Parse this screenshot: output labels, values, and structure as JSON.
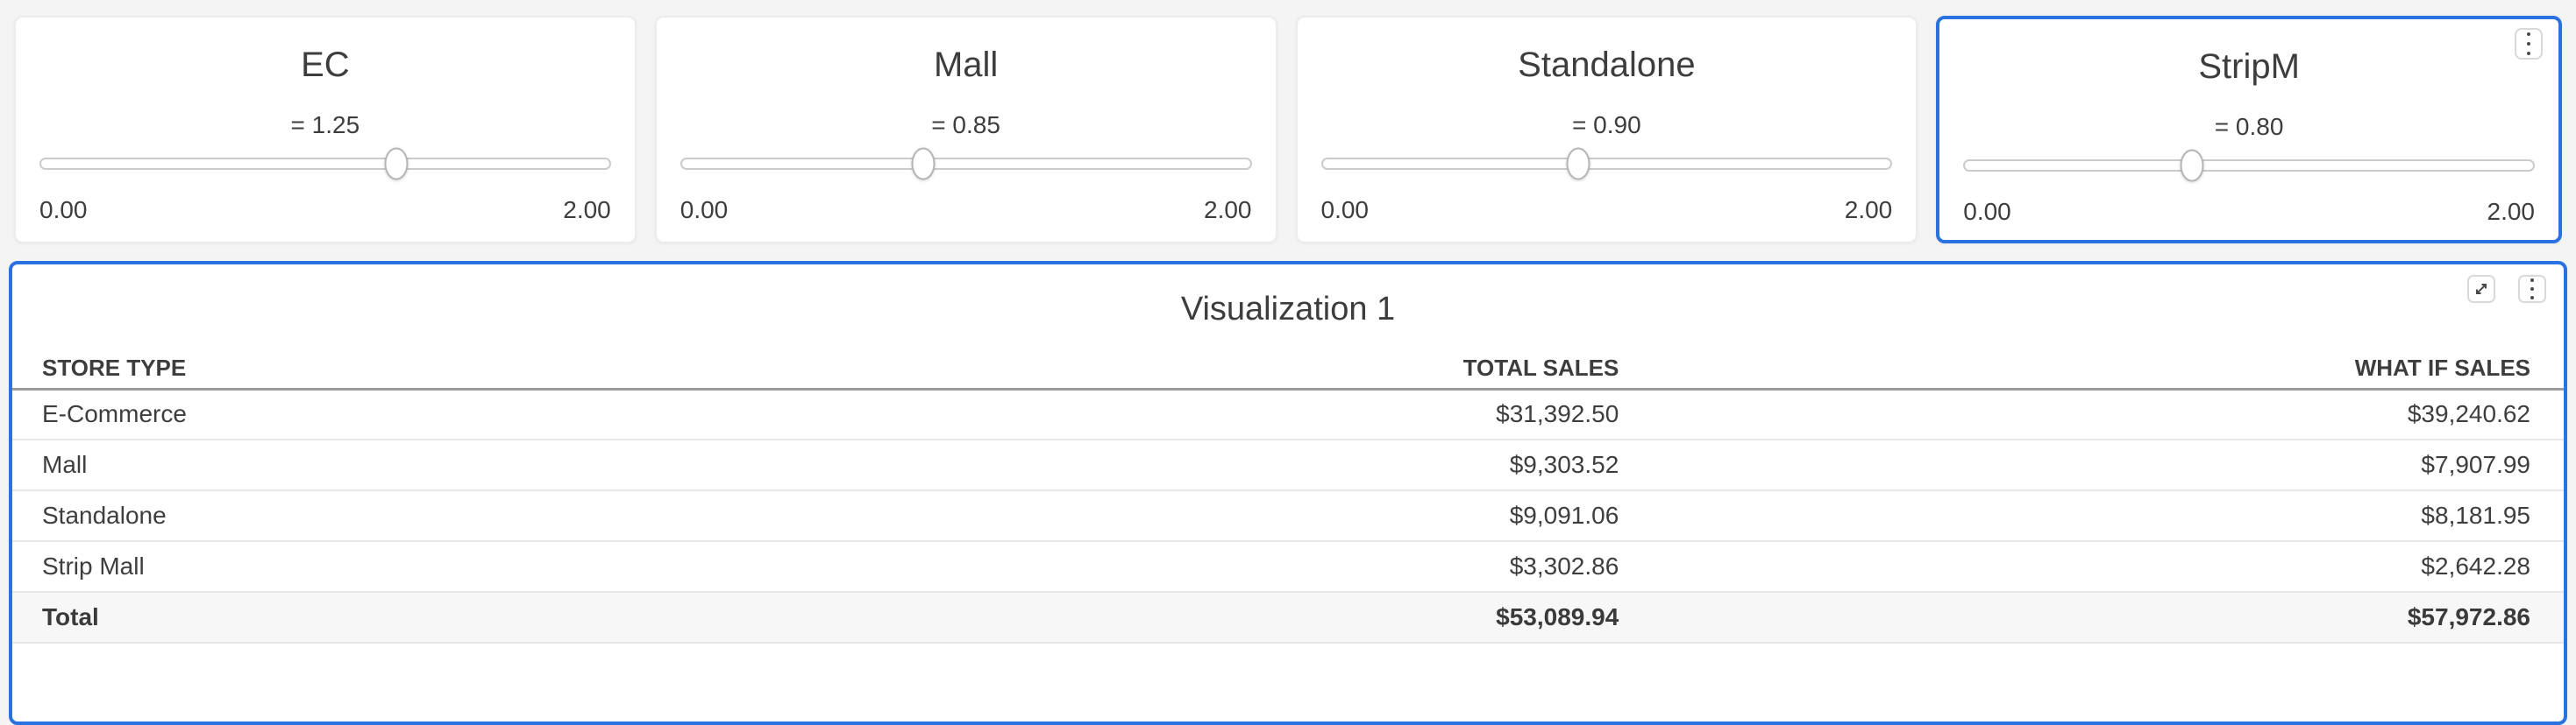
{
  "page": {
    "accent_color": "#2a72e0",
    "text_color": "#3d3d3d",
    "background_color": "#f5f4f4"
  },
  "sliders": [
    {
      "title": "EC",
      "value_label": "= 1.25",
      "value": 1.25,
      "min_label": "0.00",
      "max_label": "2.00",
      "min": 0,
      "max": 2,
      "percent": 62.5,
      "selected": false,
      "show_menu": false
    },
    {
      "title": "Mall",
      "value_label": "= 0.85",
      "value": 0.85,
      "min_label": "0.00",
      "max_label": "2.00",
      "min": 0,
      "max": 2,
      "percent": 42.5,
      "selected": false,
      "show_menu": false
    },
    {
      "title": "Standalone",
      "value_label": "= 0.90",
      "value": 0.9,
      "min_label": "0.00",
      "max_label": "2.00",
      "min": 0,
      "max": 2,
      "percent": 45.0,
      "selected": false,
      "show_menu": false
    },
    {
      "title": "StripM",
      "value_label": "= 0.80",
      "value": 0.8,
      "min_label": "0.00",
      "max_label": "2.00",
      "min": 0,
      "max": 2,
      "percent": 40.0,
      "selected": true,
      "show_menu": true
    }
  ],
  "visualization": {
    "title": "Visualization 1",
    "toolbar": {
      "expand_icon": "expand-icon",
      "menu_icon": "kebab-menu-icon"
    },
    "table": {
      "columns": [
        {
          "label": "STORE TYPE",
          "align": "left"
        },
        {
          "label": "TOTAL SALES",
          "align": "right"
        },
        {
          "label": "WHAT IF SALES",
          "align": "right"
        }
      ],
      "rows": [
        [
          "E-Commerce",
          "$31,392.50",
          "$39,240.62"
        ],
        [
          "Mall",
          "$9,303.52",
          "$7,907.99"
        ],
        [
          "Standalone",
          "$9,091.06",
          "$8,181.95"
        ],
        [
          "Strip Mall",
          "$3,302.86",
          "$2,642.28"
        ]
      ],
      "total_row": [
        "Total",
        "$53,089.94",
        "$57,972.86"
      ]
    }
  },
  "chart_data": {
    "type": "table",
    "title": "Visualization 1",
    "columns": [
      "STORE TYPE",
      "TOTAL SALES",
      "WHAT IF SALES"
    ],
    "rows": [
      [
        "E-Commerce",
        31392.5,
        39240.62
      ],
      [
        "Mall",
        9303.52,
        7907.99
      ],
      [
        "Standalone",
        9091.06,
        8181.95
      ],
      [
        "Strip Mall",
        3302.86,
        2642.28
      ]
    ],
    "total": [
      "Total",
      53089.94,
      57972.86
    ],
    "what_if_multipliers": {
      "EC": 1.25,
      "Mall": 0.85,
      "Standalone": 0.9,
      "StripM": 0.8
    }
  }
}
